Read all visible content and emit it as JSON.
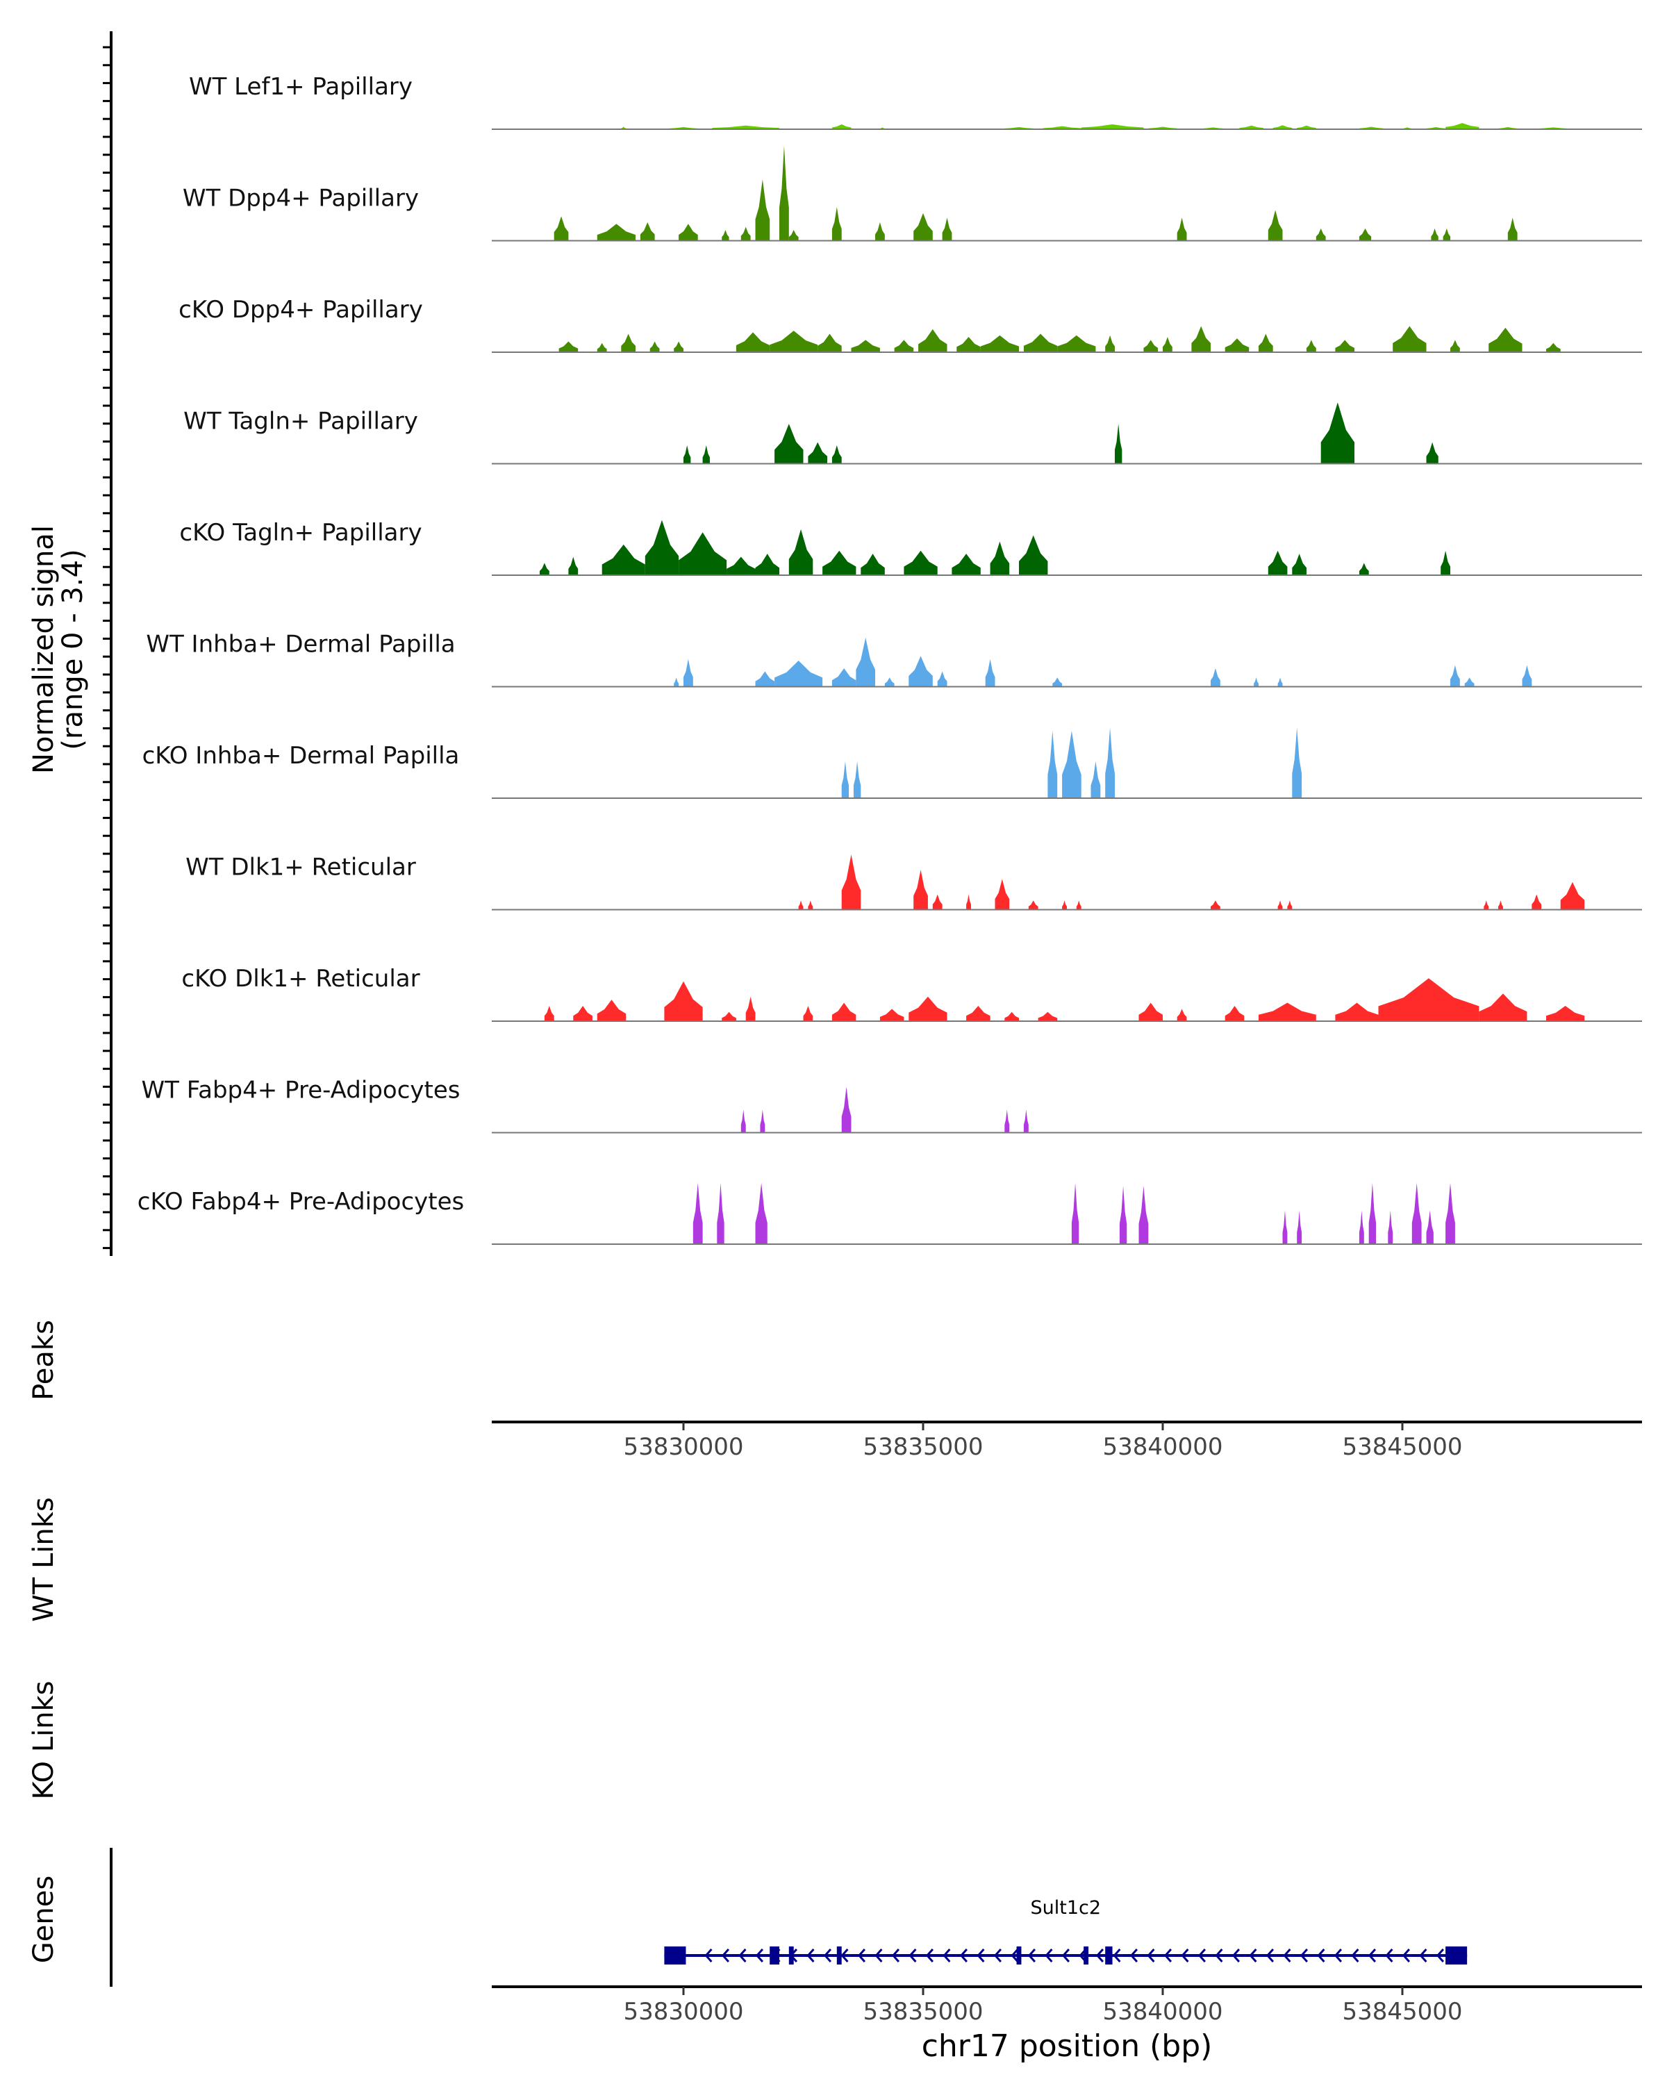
{
  "chart_data": {
    "type": "area",
    "title": "",
    "genome_axis": {
      "label": "chr17 position (bp)",
      "range": [
        53826000,
        53850000
      ],
      "ticks": [
        53830000,
        53835000,
        53840000,
        53845000
      ],
      "tick_labels": [
        "53830000",
        "53835000",
        "53840000",
        "53845000"
      ]
    },
    "signal_axis": {
      "label": "Normalized signal",
      "sublabel": "(range 0 - 3.4)",
      "range": [
        0,
        3.4
      ]
    },
    "track_labels": {
      "peaks": "Peaks",
      "wt_links": "WT Links",
      "ko_links": "KO Links",
      "genes": "Genes"
    },
    "gene": {
      "name": "Sult1c2",
      "strand": "-",
      "start": 53829600,
      "end": 53846350,
      "exons": [
        [
          53829600,
          53830050
        ],
        [
          53831800,
          53832000
        ],
        [
          53832200,
          53832300
        ],
        [
          53833200,
          53833300
        ],
        [
          53836950,
          53837050
        ],
        [
          53838350,
          53838450
        ],
        [
          53838800,
          53838950
        ],
        [
          53845900,
          53846350
        ]
      ],
      "color": "#00008b"
    },
    "series": [
      {
        "name": "WT Lef1+ Papillary",
        "color": "#66cc00",
        "peaks": [
          [
            53828700,
            53828800,
            0.08
          ],
          [
            53829700,
            53830300,
            0.07
          ],
          [
            53830600,
            53832000,
            0.12
          ],
          [
            53833100,
            53833500,
            0.16
          ],
          [
            53834100,
            53834200,
            0.06
          ],
          [
            53836700,
            53837300,
            0.07
          ],
          [
            53837500,
            53838300,
            0.1
          ],
          [
            53838300,
            53839600,
            0.16
          ],
          [
            53839700,
            53840300,
            0.08
          ],
          [
            53840800,
            53841300,
            0.06
          ],
          [
            53841600,
            53842100,
            0.12
          ],
          [
            53842300,
            53842700,
            0.13
          ],
          [
            53842800,
            53843200,
            0.12
          ],
          [
            53844100,
            53844600,
            0.08
          ],
          [
            53845000,
            53845200,
            0.06
          ],
          [
            53845500,
            53845900,
            0.07
          ],
          [
            53845900,
            53846600,
            0.2
          ],
          [
            53847000,
            53847400,
            0.07
          ],
          [
            53847800,
            53848500,
            0.06
          ]
        ]
      },
      {
        "name": "WT Dpp4+ Papillary",
        "color": "#458b00",
        "peaks": [
          [
            53827300,
            53827600,
            0.8
          ],
          [
            53828200,
            53829000,
            0.55
          ],
          [
            53829100,
            53829400,
            0.6
          ],
          [
            53829900,
            53830300,
            0.55
          ],
          [
            53830800,
            53830950,
            0.35
          ],
          [
            53831200,
            53831400,
            0.45
          ],
          [
            53831500,
            53831800,
            2.0
          ],
          [
            53832000,
            53832200,
            3.1
          ],
          [
            53832200,
            53832400,
            0.35
          ],
          [
            53833100,
            53833300,
            1.1
          ],
          [
            53834000,
            53834200,
            0.6
          ],
          [
            53834800,
            53835200,
            0.9
          ],
          [
            53835400,
            53835600,
            0.75
          ],
          [
            53840300,
            53840500,
            0.75
          ],
          [
            53842200,
            53842500,
            1.0
          ],
          [
            53843200,
            53843400,
            0.4
          ],
          [
            53844100,
            53844350,
            0.4
          ],
          [
            53845600,
            53845750,
            0.4
          ],
          [
            53845850,
            53846000,
            0.4
          ],
          [
            53847200,
            53847400,
            0.75
          ]
        ]
      },
      {
        "name": "cKO Dpp4+ Papillary",
        "color": "#458b00",
        "peaks": [
          [
            53827400,
            53827800,
            0.35
          ],
          [
            53828200,
            53828400,
            0.3
          ],
          [
            53828700,
            53829000,
            0.6
          ],
          [
            53829300,
            53829500,
            0.35
          ],
          [
            53829800,
            53830000,
            0.35
          ],
          [
            53831100,
            53831800,
            0.65
          ],
          [
            53831800,
            53832800,
            0.7
          ],
          [
            53832800,
            53833300,
            0.6
          ],
          [
            53833500,
            53834100,
            0.4
          ],
          [
            53834400,
            53834800,
            0.4
          ],
          [
            53834900,
            53835500,
            0.75
          ],
          [
            53835700,
            53836200,
            0.5
          ],
          [
            53836200,
            53837000,
            0.55
          ],
          [
            53837100,
            53837800,
            0.6
          ],
          [
            53837800,
            53838600,
            0.55
          ],
          [
            53838800,
            53839000,
            0.55
          ],
          [
            53839600,
            53839900,
            0.4
          ],
          [
            53840000,
            53840200,
            0.5
          ],
          [
            53840600,
            53841000,
            0.85
          ],
          [
            53841300,
            53841800,
            0.45
          ],
          [
            53842000,
            53842300,
            0.6
          ],
          [
            53843000,
            53843200,
            0.4
          ],
          [
            53843600,
            53844000,
            0.4
          ],
          [
            53844800,
            53845500,
            0.85
          ],
          [
            53846000,
            53846200,
            0.4
          ],
          [
            53846800,
            53847500,
            0.8
          ],
          [
            53848000,
            53848300,
            0.3
          ]
        ]
      },
      {
        "name": "WT Tagln+ Papillary",
        "color": "#006400",
        "peaks": [
          [
            53830000,
            53830150,
            0.6
          ],
          [
            53830400,
            53830550,
            0.6
          ],
          [
            53831900,
            53832500,
            1.3
          ],
          [
            53832600,
            53833000,
            0.7
          ],
          [
            53833100,
            53833300,
            0.6
          ],
          [
            53839000,
            53839150,
            1.3
          ],
          [
            53843300,
            53844000,
            2.0
          ],
          [
            53845500,
            53845750,
            0.7
          ]
        ]
      },
      {
        "name": "cKO Tagln+ Papillary",
        "color": "#006400",
        "peaks": [
          [
            53827000,
            53827200,
            0.4
          ],
          [
            53827600,
            53827800,
            0.6
          ],
          [
            53828300,
            53829200,
            1.0
          ],
          [
            53829200,
            53829900,
            1.8
          ],
          [
            53829900,
            53830900,
            1.4
          ],
          [
            53830900,
            53831500,
            0.6
          ],
          [
            53831500,
            53832000,
            0.7
          ],
          [
            53832200,
            53832700,
            1.5
          ],
          [
            53832900,
            53833600,
            0.8
          ],
          [
            53833700,
            53834200,
            0.7
          ],
          [
            53834600,
            53835300,
            0.8
          ],
          [
            53835600,
            53836200,
            0.7
          ],
          [
            53836400,
            53836800,
            1.1
          ],
          [
            53837000,
            53837600,
            1.3
          ],
          [
            53842200,
            53842600,
            0.8
          ],
          [
            53842700,
            53843000,
            0.7
          ],
          [
            53844100,
            53844300,
            0.4
          ],
          [
            53845800,
            53846000,
            0.8
          ]
        ]
      },
      {
        "name": "WT Inhba+ Dermal Papilla",
        "color": "#5ba9e8",
        "peaks": [
          [
            53829800,
            53829900,
            0.3
          ],
          [
            53830000,
            53830200,
            0.9
          ],
          [
            53831500,
            53831900,
            0.5
          ],
          [
            53831900,
            53832900,
            0.85
          ],
          [
            53833100,
            53833600,
            0.6
          ],
          [
            53833600,
            53834000,
            1.6
          ],
          [
            53834200,
            53834400,
            0.3
          ],
          [
            53834700,
            53835200,
            1.0
          ],
          [
            53835300,
            53835500,
            0.5
          ],
          [
            53836300,
            53836500,
            0.9
          ],
          [
            53837700,
            53837900,
            0.3
          ],
          [
            53841000,
            53841200,
            0.6
          ],
          [
            53841900,
            53842000,
            0.3
          ],
          [
            53842400,
            53842500,
            0.3
          ],
          [
            53846000,
            53846200,
            0.7
          ],
          [
            53846300,
            53846500,
            0.3
          ],
          [
            53847500,
            53847700,
            0.7
          ]
        ]
      },
      {
        "name": "cKO Inhba+ Dermal Papilla",
        "color": "#5ba9e8",
        "peaks": [
          [
            53833300,
            53833450,
            1.2
          ],
          [
            53833550,
            53833700,
            1.2
          ],
          [
            53837600,
            53837800,
            2.2
          ],
          [
            53837900,
            53838300,
            2.2
          ],
          [
            53838500,
            53838700,
            1.2
          ],
          [
            53838800,
            53839000,
            2.3
          ],
          [
            53842700,
            53842900,
            2.3
          ]
        ]
      },
      {
        "name": "WT Dlk1+ Reticular",
        "color": "#ff2a2a",
        "peaks": [
          [
            53832400,
            53832500,
            0.3
          ],
          [
            53832600,
            53832700,
            0.3
          ],
          [
            53833300,
            53833700,
            1.8
          ],
          [
            53834800,
            53835100,
            1.3
          ],
          [
            53835200,
            53835400,
            0.5
          ],
          [
            53835900,
            53836000,
            0.5
          ],
          [
            53836500,
            53836800,
            1.0
          ],
          [
            53837200,
            53837400,
            0.3
          ],
          [
            53837900,
            53838000,
            0.3
          ],
          [
            53838200,
            53838300,
            0.3
          ],
          [
            53841000,
            53841200,
            0.3
          ],
          [
            53842400,
            53842500,
            0.3
          ],
          [
            53842600,
            53842700,
            0.3
          ],
          [
            53846700,
            53846800,
            0.3
          ],
          [
            53847000,
            53847100,
            0.3
          ],
          [
            53847700,
            53847900,
            0.5
          ],
          [
            53848300,
            53848800,
            0.9
          ]
        ]
      },
      {
        "name": "cKO Dlk1+ Reticular",
        "color": "#ff2a2a",
        "peaks": [
          [
            53827100,
            53827300,
            0.5
          ],
          [
            53827700,
            53828100,
            0.5
          ],
          [
            53828200,
            53828800,
            0.7
          ],
          [
            53829600,
            53830400,
            1.3
          ],
          [
            53830800,
            53831100,
            0.3
          ],
          [
            53831300,
            53831500,
            0.8
          ],
          [
            53832500,
            53832700,
            0.5
          ],
          [
            53833100,
            53833600,
            0.6
          ],
          [
            53834100,
            53834600,
            0.4
          ],
          [
            53834700,
            53835500,
            0.8
          ],
          [
            53835900,
            53836400,
            0.5
          ],
          [
            53836700,
            53837000,
            0.3
          ],
          [
            53837400,
            53837800,
            0.3
          ],
          [
            53839500,
            53840000,
            0.6
          ],
          [
            53840300,
            53840500,
            0.4
          ],
          [
            53841300,
            53841700,
            0.5
          ],
          [
            53842000,
            53843200,
            0.6
          ],
          [
            53843600,
            53844500,
            0.6
          ],
          [
            53844500,
            53846600,
            1.4
          ],
          [
            53846600,
            53847600,
            0.9
          ],
          [
            53848000,
            53848800,
            0.5
          ]
        ]
      },
      {
        "name": "WT Fabp4+ Pre-Adipocytes",
        "color": "#b03ae0",
        "peaks": [
          [
            53831200,
            53831300,
            0.75
          ],
          [
            53831600,
            53831700,
            0.75
          ],
          [
            53833300,
            53833500,
            1.5
          ],
          [
            53836700,
            53836800,
            0.75
          ],
          [
            53837100,
            53837200,
            0.75
          ]
        ]
      },
      {
        "name": "cKO Fabp4+ Pre-Adipocytes",
        "color": "#b03ae0",
        "peaks": [
          [
            53830200,
            53830400,
            2.0
          ],
          [
            53830700,
            53830850,
            2.0
          ],
          [
            53831500,
            53831750,
            2.0
          ],
          [
            53838100,
            53838250,
            2.0
          ],
          [
            53839100,
            53839250,
            1.9
          ],
          [
            53839500,
            53839700,
            1.9
          ],
          [
            53842500,
            53842600,
            1.1
          ],
          [
            53842800,
            53842900,
            1.1
          ],
          [
            53844100,
            53844200,
            1.1
          ],
          [
            53844300,
            53844450,
            2.0
          ],
          [
            53844700,
            53844800,
            1.1
          ],
          [
            53845200,
            53845400,
            2.0
          ],
          [
            53845500,
            53845650,
            1.1
          ],
          [
            53845900,
            53846100,
            2.0
          ]
        ]
      }
    ]
  }
}
